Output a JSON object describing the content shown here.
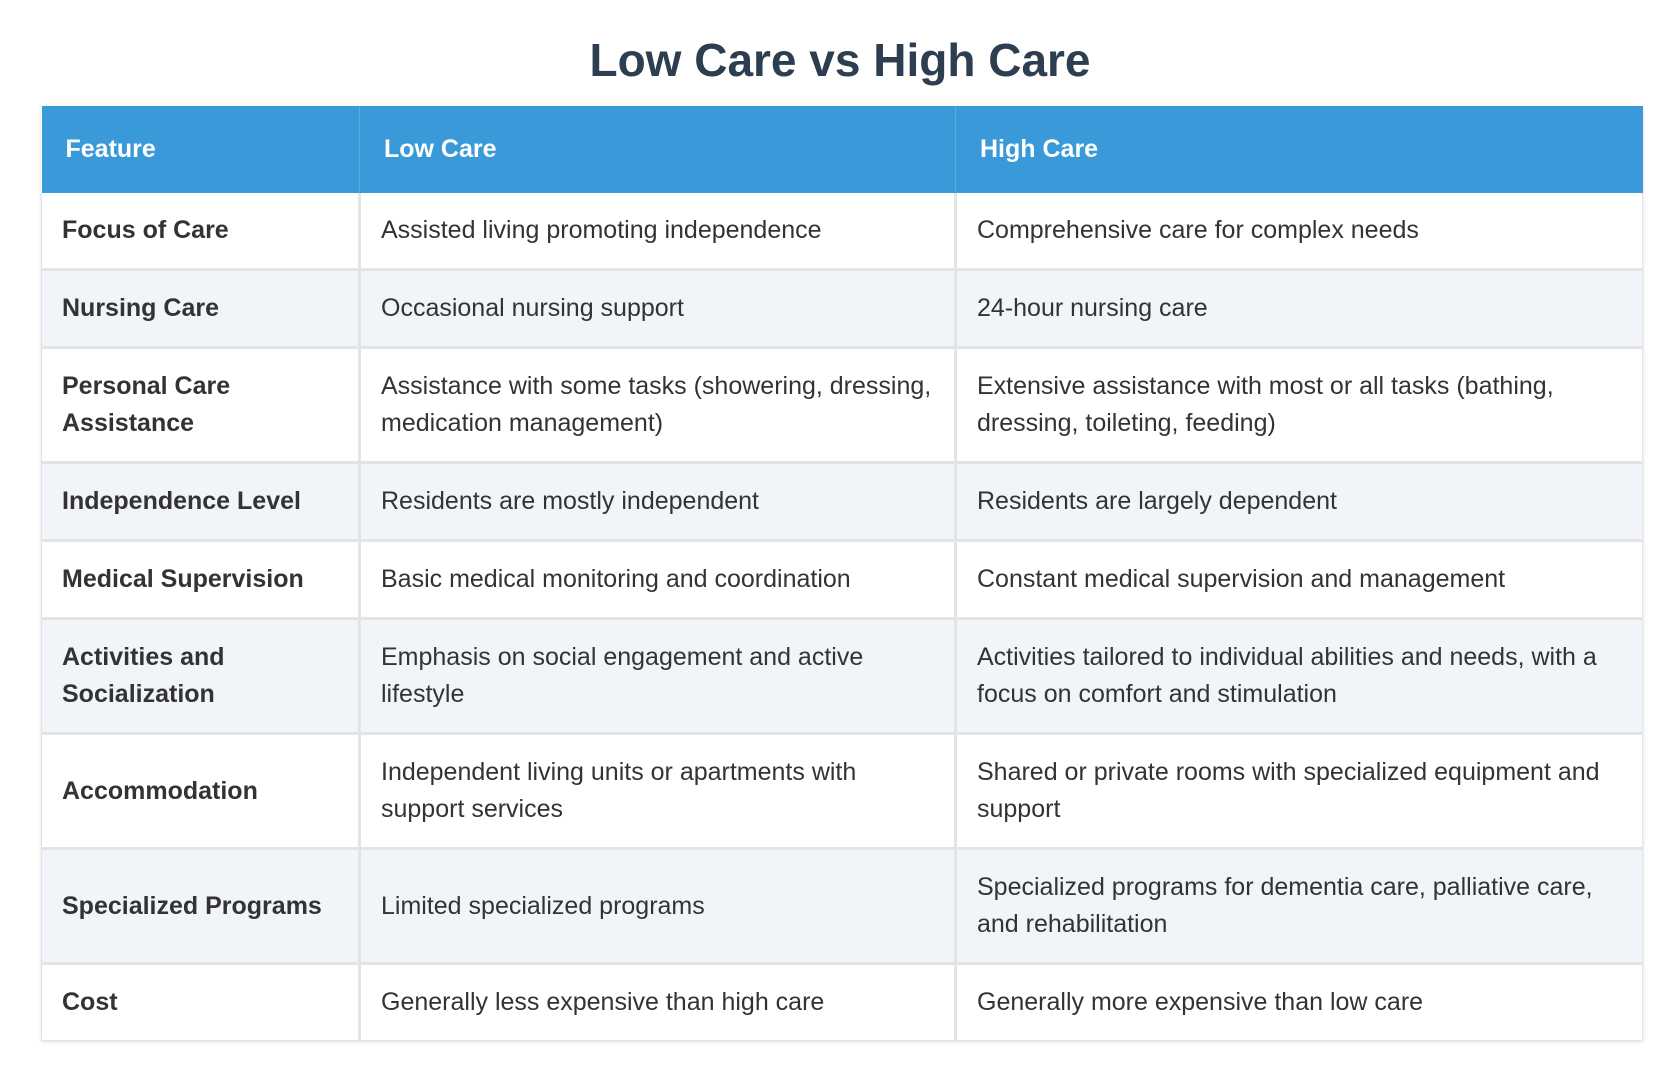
{
  "title": "Low Care vs High Care",
  "table": {
    "headers": [
      "Feature",
      "Low Care",
      "High Care"
    ],
    "rows": [
      {
        "feature": "Focus of Care",
        "low": "Assisted living promoting independence",
        "high": "Comprehensive care for complex needs"
      },
      {
        "feature": "Nursing Care",
        "low": "Occasional nursing support",
        "high": "24-hour nursing care"
      },
      {
        "feature": "Personal Care Assistance",
        "low": "Assistance with some tasks (showering, dressing, medication management)",
        "high": "Extensive assistance with most or all tasks (bathing, dressing, toileting, feeding)"
      },
      {
        "feature": "Independence Level",
        "low": "Residents are mostly independent",
        "high": "Residents are largely dependent"
      },
      {
        "feature": "Medical Supervision",
        "low": "Basic medical monitoring and coordination",
        "high": "Constant medical supervision and management"
      },
      {
        "feature": "Activities and Socialization",
        "low": "Emphasis on social engagement and active lifestyle",
        "high": "Activities tailored to individual abilities and needs, with a focus on comfort and stimulation"
      },
      {
        "feature": "Accommodation",
        "low": "Independent living units or apartments with support services",
        "high": "Shared or private rooms with specialized equipment and support"
      },
      {
        "feature": "Specialized Programs",
        "low": "Limited specialized programs",
        "high": "Specialized programs for dementia care, palliative care, and rehabilitation"
      },
      {
        "feature": "Cost",
        "low": "Generally less expensive than high care",
        "high": "Generally more expensive than low care"
      }
    ]
  },
  "colors": {
    "header_bg": "#3a99d8",
    "title": "#2c3e50",
    "row_alt": "#f1f4f9"
  }
}
